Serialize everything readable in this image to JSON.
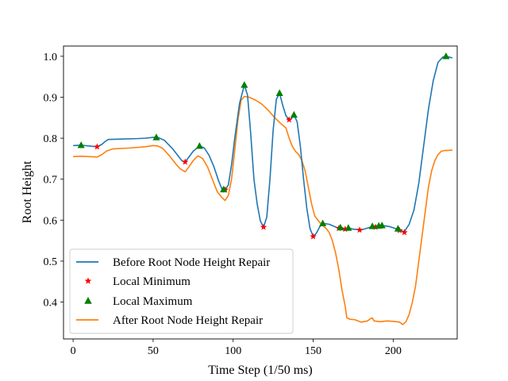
{
  "chart_data": {
    "type": "line",
    "title": "",
    "xlabel": "Time Step (1/50 ms)",
    "ylabel": "Root Height",
    "xlim": [
      -6,
      240
    ],
    "ylim": [
      0.31,
      1.025
    ],
    "xticks": [
      0,
      50,
      100,
      150,
      200
    ],
    "yticks": [
      0.4,
      0.5,
      0.6,
      0.7,
      0.8,
      0.9,
      1.0
    ],
    "xtick_labels": [
      "0",
      "50",
      "100",
      "150",
      "200"
    ],
    "ytick_labels": [
      "0.4",
      "0.5",
      "0.6",
      "0.7",
      "0.8",
      "0.9",
      "1.0"
    ],
    "legend_position": "lower-left",
    "series": [
      {
        "name": "Before Root Node Height Repair",
        "kind": "line",
        "color": "#1f77b4",
        "points": [
          [
            0,
            0.782
          ],
          [
            5,
            0.783
          ],
          [
            10,
            0.781
          ],
          [
            15,
            0.779
          ],
          [
            18,
            0.785
          ],
          [
            20,
            0.792
          ],
          [
            22,
            0.797
          ],
          [
            30,
            0.798
          ],
          [
            40,
            0.799
          ],
          [
            45,
            0.8
          ],
          [
            50,
            0.802
          ],
          [
            53,
            0.802
          ],
          [
            57,
            0.795
          ],
          [
            62,
            0.775
          ],
          [
            66,
            0.755
          ],
          [
            68,
            0.745
          ],
          [
            70,
            0.742
          ],
          [
            72,
            0.752
          ],
          [
            75,
            0.768
          ],
          [
            79,
            0.781
          ],
          [
            82,
            0.776
          ],
          [
            85,
            0.758
          ],
          [
            88,
            0.73
          ],
          [
            91,
            0.695
          ],
          [
            93,
            0.676
          ],
          [
            95,
            0.674
          ],
          [
            97,
            0.686
          ],
          [
            99,
            0.735
          ],
          [
            101,
            0.8
          ],
          [
            104,
            0.885
          ],
          [
            107,
            0.93
          ],
          [
            109,
            0.905
          ],
          [
            111,
            0.81
          ],
          [
            113,
            0.7
          ],
          [
            115,
            0.64
          ],
          [
            117,
            0.598
          ],
          [
            119,
            0.583
          ],
          [
            121,
            0.607
          ],
          [
            123,
            0.7
          ],
          [
            125,
            0.82
          ],
          [
            127,
            0.895
          ],
          [
            129,
            0.91
          ],
          [
            131,
            0.88
          ],
          [
            133,
            0.855
          ],
          [
            135,
            0.845
          ],
          [
            136,
            0.846
          ],
          [
            138,
            0.857
          ],
          [
            140,
            0.84
          ],
          [
            142,
            0.78
          ],
          [
            144,
            0.7
          ],
          [
            146,
            0.63
          ],
          [
            148,
            0.58
          ],
          [
            150,
            0.56
          ],
          [
            152,
            0.568
          ],
          [
            154,
            0.583
          ],
          [
            156,
            0.592
          ],
          [
            160,
            0.59
          ],
          [
            163,
            0.585
          ],
          [
            166,
            0.58
          ],
          [
            168,
            0.582
          ],
          [
            170,
            0.578
          ],
          [
            172,
            0.581
          ],
          [
            175,
            0.578
          ],
          [
            180,
            0.576
          ],
          [
            185,
            0.582
          ],
          [
            188,
            0.585
          ],
          [
            192,
            0.587
          ],
          [
            195,
            0.586
          ],
          [
            198,
            0.584
          ],
          [
            201,
            0.58
          ],
          [
            204,
            0.575
          ],
          [
            207,
            0.572
          ],
          [
            210,
            0.59
          ],
          [
            213,
            0.625
          ],
          [
            216,
            0.69
          ],
          [
            219,
            0.78
          ],
          [
            222,
            0.87
          ],
          [
            225,
            0.94
          ],
          [
            228,
            0.985
          ],
          [
            231,
            0.998
          ],
          [
            233,
            1.0
          ],
          [
            235,
            0.998
          ],
          [
            237,
            0.996
          ]
        ]
      },
      {
        "name": "Local Minimum",
        "kind": "markers",
        "marker": "star",
        "color": "#ff0000",
        "points": [
          [
            15,
            0.779
          ],
          [
            70,
            0.742
          ],
          [
            95,
            0.674
          ],
          [
            119,
            0.583
          ],
          [
            135,
            0.845
          ],
          [
            150,
            0.56
          ],
          [
            166,
            0.58
          ],
          [
            170,
            0.578
          ],
          [
            179,
            0.576
          ],
          [
            189,
            0.583
          ],
          [
            204,
            0.575
          ],
          [
            207,
            0.57
          ]
        ]
      },
      {
        "name": "Local Maximum",
        "kind": "markers",
        "marker": "triangle",
        "color": "#008000",
        "points": [
          [
            5,
            0.783
          ],
          [
            52,
            0.802
          ],
          [
            79,
            0.781
          ],
          [
            94,
            0.675
          ],
          [
            107,
            0.93
          ],
          [
            129,
            0.91
          ],
          [
            138,
            0.857
          ],
          [
            156,
            0.592
          ],
          [
            167,
            0.582
          ],
          [
            172,
            0.581
          ],
          [
            187,
            0.585
          ],
          [
            191,
            0.586
          ],
          [
            193,
            0.587
          ],
          [
            203,
            0.579
          ],
          [
            233,
            1.0
          ]
        ]
      },
      {
        "name": "After Root Node Height Repair",
        "kind": "line",
        "color": "#ff7f0e",
        "points": [
          [
            0,
            0.755
          ],
          [
            5,
            0.756
          ],
          [
            10,
            0.755
          ],
          [
            15,
            0.754
          ],
          [
            18,
            0.76
          ],
          [
            21,
            0.769
          ],
          [
            25,
            0.774
          ],
          [
            35,
            0.776
          ],
          [
            45,
            0.779
          ],
          [
            50,
            0.782
          ],
          [
            53,
            0.781
          ],
          [
            56,
            0.775
          ],
          [
            60,
            0.758
          ],
          [
            64,
            0.738
          ],
          [
            67,
            0.725
          ],
          [
            70,
            0.718
          ],
          [
            72,
            0.728
          ],
          [
            75,
            0.745
          ],
          [
            78,
            0.757
          ],
          [
            81,
            0.75
          ],
          [
            84,
            0.73
          ],
          [
            87,
            0.7
          ],
          [
            90,
            0.67
          ],
          [
            93,
            0.655
          ],
          [
            95,
            0.648
          ],
          [
            97,
            0.66
          ],
          [
            99,
            0.7
          ],
          [
            101,
            0.77
          ],
          [
            103,
            0.845
          ],
          [
            105,
            0.893
          ],
          [
            107,
            0.902
          ],
          [
            110,
            0.9
          ],
          [
            114,
            0.893
          ],
          [
            118,
            0.883
          ],
          [
            122,
            0.868
          ],
          [
            126,
            0.85
          ],
          [
            130,
            0.835
          ],
          [
            133,
            0.825
          ],
          [
            135,
            0.8
          ],
          [
            137,
            0.78
          ],
          [
            139,
            0.768
          ],
          [
            141,
            0.76
          ],
          [
            143,
            0.745
          ],
          [
            145,
            0.72
          ],
          [
            147,
            0.68
          ],
          [
            149,
            0.64
          ],
          [
            151,
            0.61
          ],
          [
            153,
            0.6
          ],
          [
            155,
            0.59
          ],
          [
            158,
            0.58
          ],
          [
            160,
            0.57
          ],
          [
            162,
            0.55
          ],
          [
            164,
            0.52
          ],
          [
            166,
            0.48
          ],
          [
            168,
            0.43
          ],
          [
            170,
            0.39
          ],
          [
            171,
            0.362
          ],
          [
            173,
            0.358
          ],
          [
            176,
            0.357
          ],
          [
            180,
            0.351
          ],
          [
            184,
            0.354
          ],
          [
            186,
            0.36
          ],
          [
            187,
            0.361
          ],
          [
            188,
            0.354
          ],
          [
            192,
            0.352
          ],
          [
            196,
            0.354
          ],
          [
            200,
            0.353
          ],
          [
            204,
            0.351
          ],
          [
            206,
            0.345
          ],
          [
            208,
            0.352
          ],
          [
            210,
            0.37
          ],
          [
            212,
            0.4
          ],
          [
            214,
            0.44
          ],
          [
            216,
            0.5
          ],
          [
            218,
            0.56
          ],
          [
            220,
            0.62
          ],
          [
            222,
            0.68
          ],
          [
            224,
            0.72
          ],
          [
            226,
            0.745
          ],
          [
            228,
            0.76
          ],
          [
            230,
            0.768
          ],
          [
            232,
            0.77
          ],
          [
            234,
            0.77
          ],
          [
            237,
            0.771
          ]
        ]
      }
    ]
  }
}
